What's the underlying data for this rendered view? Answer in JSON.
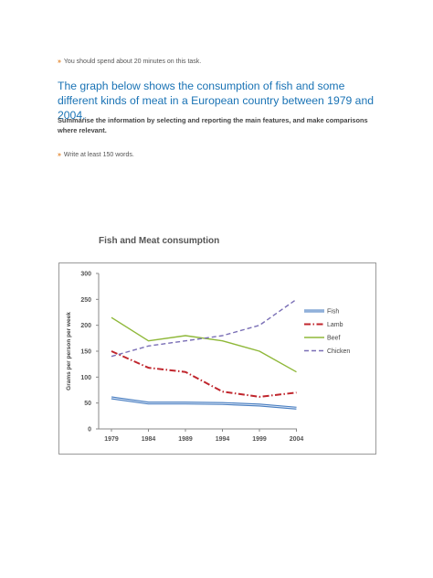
{
  "instructions": {
    "time": "You should spend about 20 minutes on this task.",
    "task": "The graph below shows the consumption of fish and some different kinds of meat in a European country between 1979 and 2004.",
    "summary": "Summarise the information by selecting and reporting the main features, and make comparisons where relevant.",
    "words": "Write at least 150 words."
  },
  "chart_data": {
    "type": "line",
    "title": "Fish and Meat consumption",
    "xlabel": "",
    "ylabel": "Grams per person per week",
    "categories": [
      "1979",
      "1984",
      "1989",
      "1994",
      "1999",
      "2004"
    ],
    "ylim": [
      0,
      300
    ],
    "yticks": [
      0,
      50,
      100,
      150,
      200,
      250,
      300
    ],
    "grid": false,
    "legend_position": "right",
    "series": [
      {
        "name": "Fish",
        "color": "#4a7fc1",
        "style": "solid-double",
        "values": [
          60,
          50,
          50,
          49,
          46,
          40
        ]
      },
      {
        "name": "Lamb",
        "color": "#c0262d",
        "style": "dash-dot",
        "values": [
          150,
          118,
          110,
          72,
          62,
          70
        ]
      },
      {
        "name": "Beef",
        "color": "#8fb839",
        "style": "solid",
        "values": [
          215,
          170,
          180,
          170,
          150,
          110
        ]
      },
      {
        "name": "Chicken",
        "color": "#7a6fb6",
        "style": "dashed",
        "values": [
          140,
          160,
          170,
          180,
          200,
          250
        ]
      }
    ]
  }
}
